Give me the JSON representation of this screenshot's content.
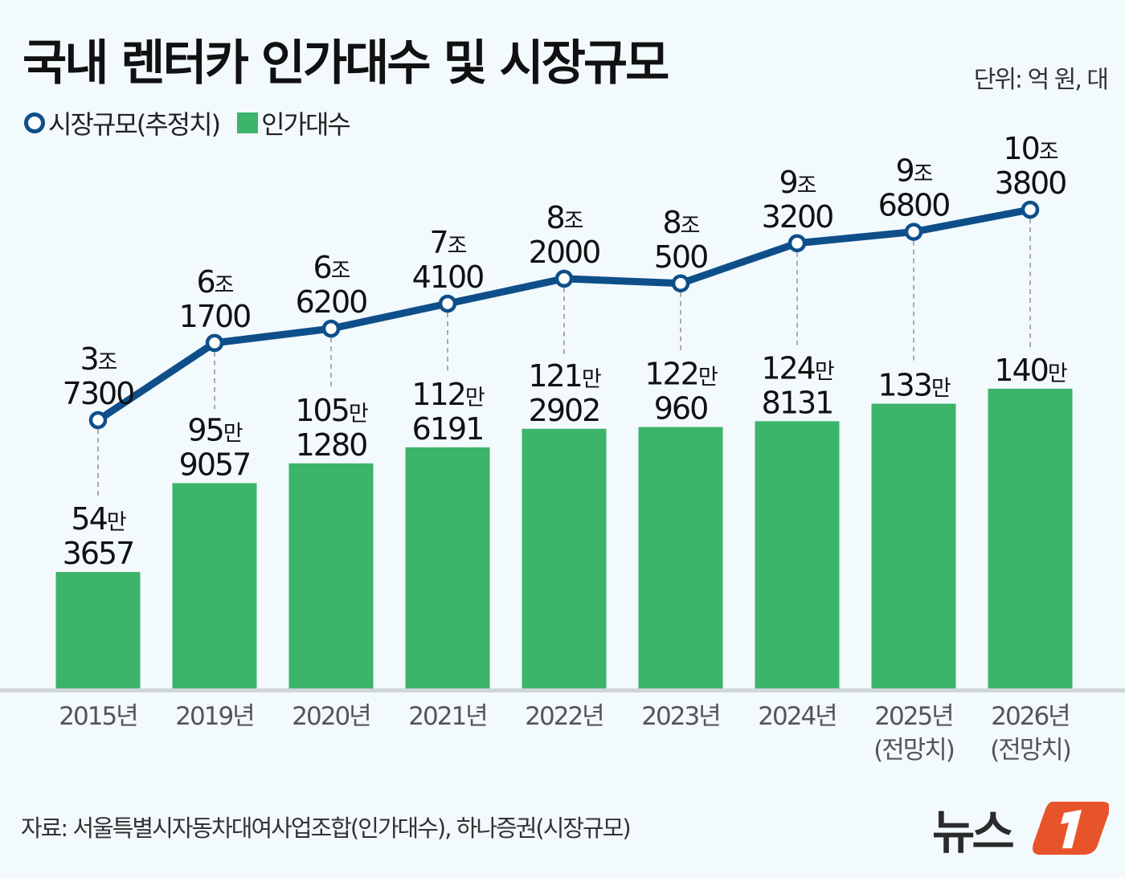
{
  "title": "국내 렌터카 인가대수 및 시장규모",
  "unit": "단위: 억 원, 대",
  "legend": {
    "line": "시장규모(추정치)",
    "bar": "인가대수"
  },
  "source": "자료: 서울특별시자동차대여사업조합(인가대수), 하나증권(시장규모)",
  "logo_text": "뉴스1",
  "colors": {
    "line": "#0e4f8a",
    "bar": "#3cb46a",
    "background": "#f3fafd",
    "logo": "#e8542a"
  },
  "chart_data": {
    "type": "bar+line",
    "categories": [
      [
        "2015년"
      ],
      [
        "2019년"
      ],
      [
        "2020년"
      ],
      [
        "2021년"
      ],
      [
        "2022년"
      ],
      [
        "2023년"
      ],
      [
        "2024년"
      ],
      [
        "2025년",
        "(전망치)"
      ],
      [
        "2026년",
        "(전망치)"
      ]
    ],
    "series": [
      {
        "name": "인가대수",
        "type": "bar",
        "unit": "대",
        "values": [
          543657,
          959057,
          1051280,
          1126191,
          1212902,
          1220960,
          1248131,
          1330000,
          1400000
        ],
        "labels": [
          [
            "54만",
            "3657"
          ],
          [
            "95만",
            "9057"
          ],
          [
            "105만",
            "1280"
          ],
          [
            "112만",
            "6191"
          ],
          [
            "121만",
            "2902"
          ],
          [
            "122만",
            "960"
          ],
          [
            "124만",
            "8131"
          ],
          [
            "133만"
          ],
          [
            "140만"
          ]
        ]
      },
      {
        "name": "시장규모(추정치)",
        "type": "line",
        "unit": "억 원",
        "values": [
          37300,
          61700,
          66200,
          74100,
          82000,
          80500,
          93200,
          96800,
          103800
        ],
        "labels": [
          [
            "3조",
            "7300"
          ],
          [
            "6조",
            "1700"
          ],
          [
            "6조",
            "6200"
          ],
          [
            "7조",
            "4100"
          ],
          [
            "8조",
            "2000"
          ],
          [
            "8조",
            "500"
          ],
          [
            "9조",
            "3200"
          ],
          [
            "9조",
            "6800"
          ],
          [
            "10조",
            "3800"
          ]
        ]
      }
    ],
    "grid": false,
    "legend_position": "top-left"
  }
}
